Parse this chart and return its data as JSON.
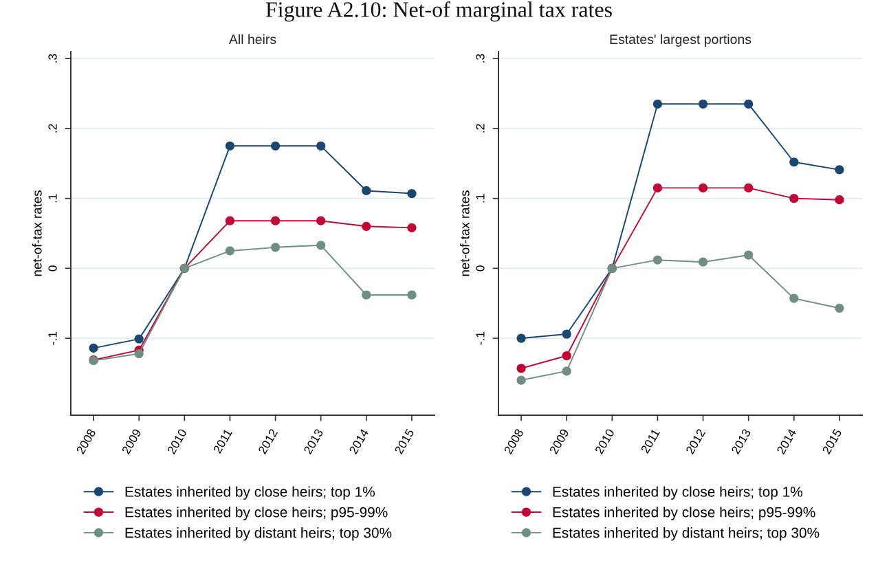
{
  "chart_data": [
    {
      "type": "line",
      "title": "All heirs",
      "ylabel": "net-of-tax rates",
      "annotations": [
        "Figure A2.10: Net-of marginal tax rates"
      ],
      "categories": [
        "2008",
        "2009",
        "2010",
        "2011",
        "2012",
        "2013",
        "2014",
        "2015"
      ],
      "series": [
        {
          "name": "Estates inherited by close heirs; top 1%",
          "color": "#1a476f",
          "values": [
            -0.114,
            -0.101,
            0,
            0.175,
            0.175,
            0.175,
            0.111,
            0.107
          ]
        },
        {
          "name": "Estates inherited by close heirs; p95-99%",
          "color": "#c10534",
          "values": [
            -0.131,
            -0.117,
            0,
            0.068,
            0.068,
            0.068,
            0.06,
            0.058
          ]
        },
        {
          "name": "Estates inherited by distant heirs; top 30%",
          "color": "#6e8e84",
          "values": [
            -0.132,
            -0.122,
            0,
            0.025,
            0.03,
            0.033,
            -0.038,
            -0.038
          ]
        }
      ],
      "ylim": [
        -0.21,
        0.31
      ],
      "yticks": [
        {
          "value": -0.1,
          "label": "-.1"
        },
        0,
        {
          "value": 0.1,
          "label": ".1"
        },
        {
          "value": 0.2,
          "label": ".2"
        },
        {
          "value": 0.3,
          "label": ".3"
        }
      ],
      "grid": "y",
      "legend": "bottom",
      "marker": "circle",
      "line_style": "solid"
    },
    {
      "type": "line",
      "title": "Estates' largest portions",
      "ylabel": "net-of-tax rates",
      "categories": [
        "2008",
        "2009",
        "2010",
        "2011",
        "2012",
        "2013",
        "2014",
        "2015"
      ],
      "series": [
        {
          "name": "Estates inherited by close heirs; top 1%",
          "color": "#1a476f",
          "values": [
            -0.1,
            -0.094,
            0,
            0.235,
            0.235,
            0.235,
            0.152,
            0.141
          ]
        },
        {
          "name": "Estates inherited by close heirs; p95-99%",
          "color": "#c10534",
          "values": [
            -0.143,
            -0.125,
            0,
            0.115,
            0.115,
            0.115,
            0.1,
            0.098
          ]
        },
        {
          "name": "Estates inherited by distant heirs; top 30%",
          "color": "#6e8e84",
          "values": [
            -0.16,
            -0.147,
            0,
            0.012,
            0.009,
            0.019,
            -0.043,
            -0.057
          ]
        }
      ],
      "ylim": [
        -0.21,
        0.31
      ],
      "yticks": [
        {
          "value": -0.1,
          "label": "-.1"
        },
        0,
        {
          "value": 0.1,
          "label": ".1"
        },
        {
          "value": 0.2,
          "label": ".2"
        },
        {
          "value": 0.3,
          "label": ".3"
        }
      ],
      "grid": "y",
      "legend": "bottom",
      "marker": "circle",
      "line_style": "solid"
    }
  ]
}
